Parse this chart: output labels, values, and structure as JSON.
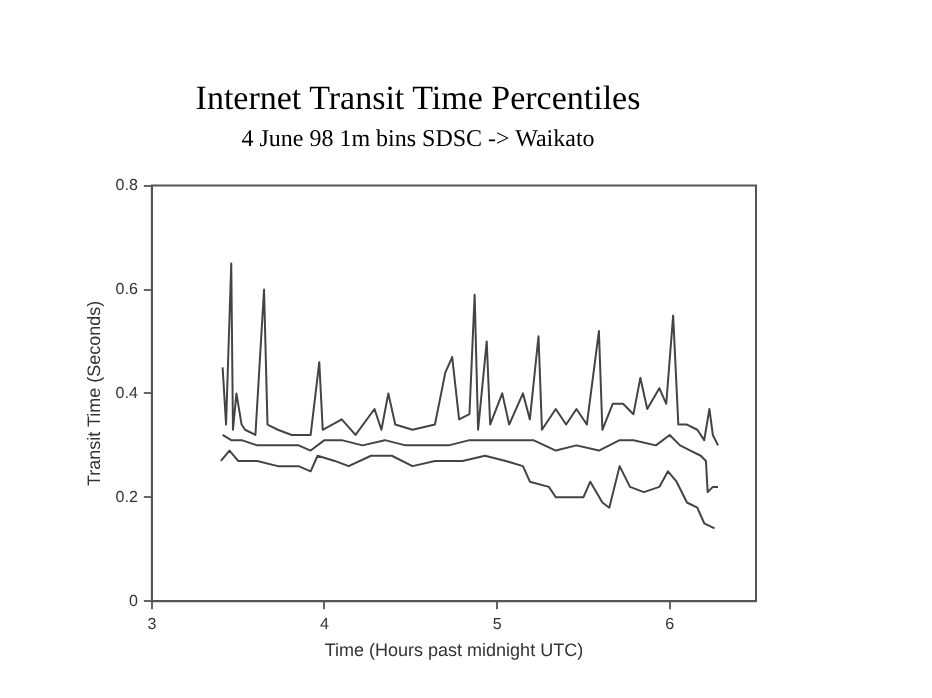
{
  "chart_data": {
    "type": "line",
    "title": "Internet Transit Time Percentiles",
    "subtitle": "4 June 98 1m bins SDSC -> Waikato",
    "xlabel": "Time (Hours past midnight UTC)",
    "ylabel": "Transit Time (Seconds)",
    "xlim": [
      3,
      6.5
    ],
    "xticks": [
      3,
      4,
      5,
      6
    ],
    "ylim": [
      0,
      0.8
    ],
    "yticks": [
      0,
      0.2,
      0.4,
      0.6,
      0.8
    ],
    "legend": false,
    "marker": "none",
    "line_style": "solid",
    "series": [
      {
        "color": "#444444",
        "x": [
          3.41,
          3.43,
          3.46,
          3.47,
          3.49,
          3.52,
          3.54,
          3.6,
          3.65,
          3.67,
          3.73,
          3.81,
          3.92,
          3.97,
          3.99,
          4.1,
          4.18,
          4.29,
          4.33,
          4.37,
          4.41,
          4.51,
          4.64,
          4.7,
          4.74,
          4.78,
          4.84,
          4.87,
          4.89,
          4.94,
          4.96,
          5.03,
          5.07,
          5.15,
          5.19,
          5.24,
          5.26,
          5.34,
          5.4,
          5.46,
          5.52,
          5.59,
          5.61,
          5.67,
          5.73,
          5.79,
          5.83,
          5.87,
          5.94,
          5.98,
          6.02,
          6.05,
          6.1,
          6.16,
          6.2,
          6.23,
          6.25,
          6.28
        ],
        "values": [
          0.45,
          0.34,
          0.65,
          0.33,
          0.4,
          0.34,
          0.33,
          0.32,
          0.6,
          0.34,
          0.33,
          0.32,
          0.32,
          0.46,
          0.33,
          0.35,
          0.32,
          0.37,
          0.33,
          0.4,
          0.34,
          0.33,
          0.34,
          0.44,
          0.47,
          0.35,
          0.36,
          0.59,
          0.33,
          0.5,
          0.34,
          0.4,
          0.34,
          0.4,
          0.35,
          0.51,
          0.33,
          0.37,
          0.34,
          0.37,
          0.34,
          0.52,
          0.33,
          0.38,
          0.38,
          0.36,
          0.43,
          0.37,
          0.41,
          0.38,
          0.55,
          0.34,
          0.34,
          0.33,
          0.31,
          0.37,
          0.32,
          0.3
        ]
      },
      {
        "color": "#444444",
        "x": [
          3.41,
          3.46,
          3.52,
          3.61,
          3.73,
          3.85,
          3.92,
          4.0,
          4.1,
          4.22,
          4.35,
          4.47,
          4.6,
          4.72,
          4.84,
          4.97,
          5.09,
          5.21,
          5.34,
          5.46,
          5.59,
          5.71,
          5.79,
          5.92,
          6.0,
          6.06,
          6.12,
          6.18,
          6.21,
          6.22,
          6.25,
          6.28
        ],
        "values": [
          0.32,
          0.31,
          0.31,
          0.3,
          0.3,
          0.3,
          0.29,
          0.31,
          0.31,
          0.3,
          0.31,
          0.3,
          0.3,
          0.3,
          0.31,
          0.31,
          0.31,
          0.31,
          0.29,
          0.3,
          0.29,
          0.31,
          0.31,
          0.3,
          0.32,
          0.3,
          0.29,
          0.28,
          0.27,
          0.21,
          0.22,
          0.22
        ]
      },
      {
        "color": "#444444",
        "x": [
          3.4,
          3.45,
          3.5,
          3.61,
          3.73,
          3.85,
          3.92,
          3.96,
          4.06,
          4.14,
          4.27,
          4.39,
          4.51,
          4.64,
          4.8,
          4.93,
          5.05,
          5.15,
          5.19,
          5.3,
          5.34,
          5.42,
          5.5,
          5.54,
          5.61,
          5.65,
          5.71,
          5.77,
          5.85,
          5.94,
          5.99,
          6.04,
          6.1,
          6.16,
          6.2,
          6.26
        ],
        "values": [
          0.27,
          0.29,
          0.27,
          0.27,
          0.26,
          0.26,
          0.25,
          0.28,
          0.27,
          0.26,
          0.28,
          0.28,
          0.26,
          0.27,
          0.27,
          0.28,
          0.27,
          0.26,
          0.23,
          0.22,
          0.2,
          0.2,
          0.2,
          0.23,
          0.19,
          0.18,
          0.26,
          0.22,
          0.21,
          0.22,
          0.25,
          0.23,
          0.19,
          0.18,
          0.15,
          0.14
        ]
      }
    ]
  }
}
